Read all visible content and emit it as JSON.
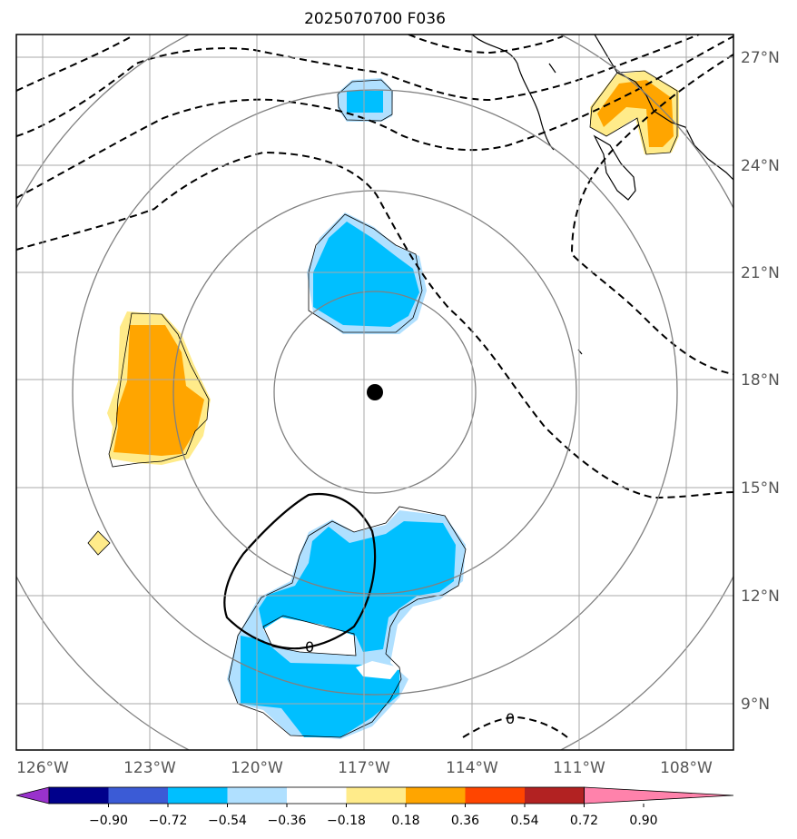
{
  "title": "2025070700 F036",
  "longitude_labels": [
    "126°W",
    "123°W",
    "120°W",
    "117°W",
    "114°W",
    "111°W",
    "108°W"
  ],
  "latitude_labels": [
    "27°N",
    "24°N",
    "21°N",
    "18°N",
    "15°N",
    "12°N",
    "9°N"
  ],
  "contour_labels": [
    "0",
    "0"
  ],
  "colorbar": {
    "tick_labels": [
      "−0.90",
      "−0.72",
      "−0.54",
      "−0.36",
      "−0.18",
      "0.18",
      "0.36",
      "0.54",
      "0.72",
      "0.90"
    ],
    "colors": [
      "#9932cc",
      "#00008b",
      "#3b5bd6",
      "#00bfff",
      "#b0e0ff",
      "#ffffff",
      "#ffeb8a",
      "#ffa500",
      "#ff4500",
      "#b22222",
      "#ff82ab"
    ]
  },
  "storm_center": {
    "lat": 17.6,
    "lon": -116.9
  },
  "range_rings_deg": [
    3,
    6,
    9,
    12
  ]
}
